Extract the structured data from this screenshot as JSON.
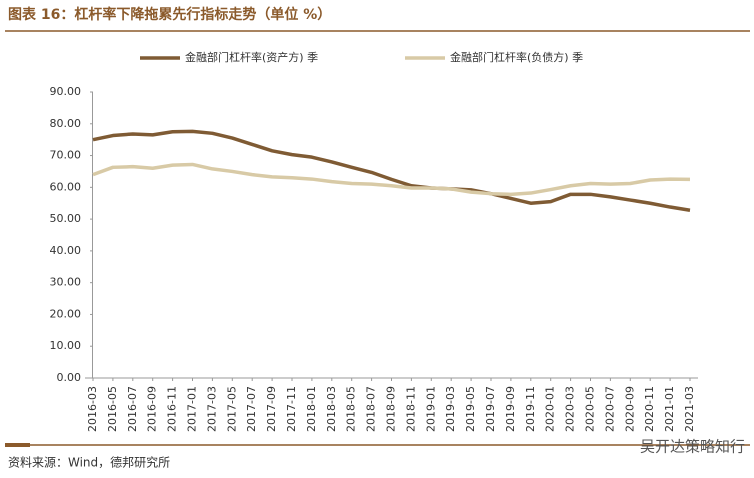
{
  "header": {
    "title": "图表 16：杠杆率下降拖累先行指标走势（单位 %）"
  },
  "chart_data": {
    "type": "line",
    "categories": [
      "2016-03",
      "2016-05",
      "2016-07",
      "2016-09",
      "2016-11",
      "2017-01",
      "2017-03",
      "2017-05",
      "2017-07",
      "2017-09",
      "2017-11",
      "2018-01",
      "2018-03",
      "2018-05",
      "2018-07",
      "2018-09",
      "2018-11",
      "2019-01",
      "2019-03",
      "2019-05",
      "2019-07",
      "2019-09",
      "2019-11",
      "2020-01",
      "2020-03",
      "2020-05",
      "2020-07",
      "2020-09",
      "2020-11",
      "2021-01",
      "2021-03"
    ],
    "series": [
      {
        "name": "金融部门杠杆率(资产方) 季",
        "color": "#7f5b34",
        "values": [
          75,
          76.3,
          76.8,
          76.5,
          77.5,
          77.6,
          77,
          75.5,
          73.5,
          71.5,
          70.3,
          69.5,
          68,
          66.3,
          64.7,
          62.5,
          60.5,
          59.8,
          59.5,
          59.2,
          58,
          56.5,
          55,
          55.5,
          57.8,
          57.8,
          57,
          56,
          55,
          53.8,
          52.8
        ]
      },
      {
        "name": "金融部门杠杆率(负债方) 季",
        "color": "#d8caa6",
        "values": [
          64,
          66.3,
          66.5,
          66,
          67,
          67.2,
          65.8,
          65,
          64,
          63.3,
          63,
          62.6,
          61.8,
          61.2,
          61,
          60.5,
          59.8,
          59.8,
          59.5,
          58.5,
          58,
          57.8,
          58.2,
          59.3,
          60.5,
          61.2,
          61,
          61.2,
          62.3,
          62.6,
          62.5
        ]
      }
    ],
    "ylim": [
      0,
      90
    ],
    "yticks": [
      {
        "value": 0,
        "label": "0.00"
      },
      {
        "value": 10,
        "label": "10.00"
      },
      {
        "value": 20,
        "label": "20.00"
      },
      {
        "value": 30,
        "label": "30.00"
      },
      {
        "value": 40,
        "label": "40.00"
      },
      {
        "value": 50,
        "label": "50.00"
      },
      {
        "value": 60,
        "label": "60.00"
      },
      {
        "value": 70,
        "label": "70.00"
      },
      {
        "value": 80,
        "label": "80.00"
      },
      {
        "value": 90,
        "label": "90.00"
      }
    ],
    "legend": "top"
  },
  "footer": {
    "source": "资料来源：Wind，德邦研究所",
    "watermark": "吴开达策略知行"
  }
}
